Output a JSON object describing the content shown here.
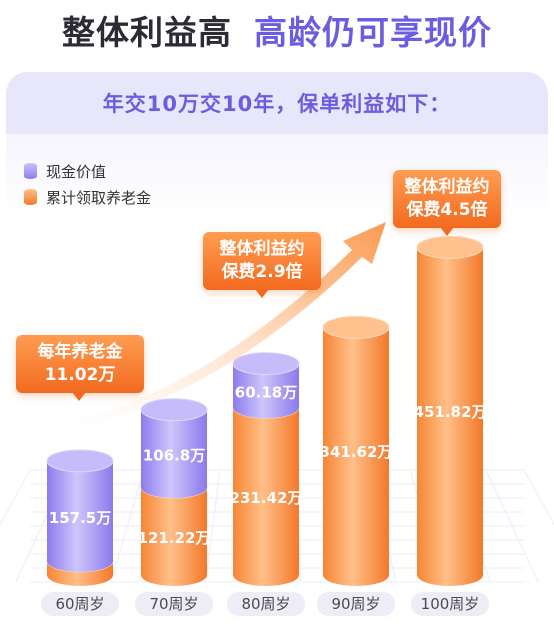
{
  "header": {
    "title_left": "整体利益高",
    "title_right": "高龄仍可享现价"
  },
  "subtitle": "年交10万交10年，保单利益如下：",
  "callouts": {
    "annual_line1": "每年养老金",
    "annual_line2": "11.02万",
    "mid_line1": "整体利益约",
    "mid_line2": "保费2.9倍",
    "top_line1": "整体利益约",
    "top_line2": "保费4.5倍"
  },
  "colors": {
    "cash_value": "#9d8ff2",
    "pension": "#fb9a52",
    "accent": "#6b5ce0"
  },
  "chart_data": {
    "type": "bar",
    "stacked": true,
    "categories": [
      "60周岁",
      "70周岁",
      "80周岁",
      "90周岁",
      "100周岁"
    ],
    "series": [
      {
        "name": "累计领取养老金",
        "values": [
          null,
          121.22,
          231.42,
          341.62,
          451.82
        ],
        "labels": [
          "",
          "121.22万",
          "231.42万",
          "341.62万",
          "451.82万"
        ]
      },
      {
        "name": "现金价值",
        "values": [
          157.5,
          106.8,
          60.18,
          null,
          null
        ],
        "labels": [
          "157.5万",
          "106.8万",
          "60.18万",
          "",
          ""
        ]
      }
    ],
    "legend": [
      "现金价值",
      "累计领取养老金"
    ],
    "legend_position": "top-left"
  }
}
